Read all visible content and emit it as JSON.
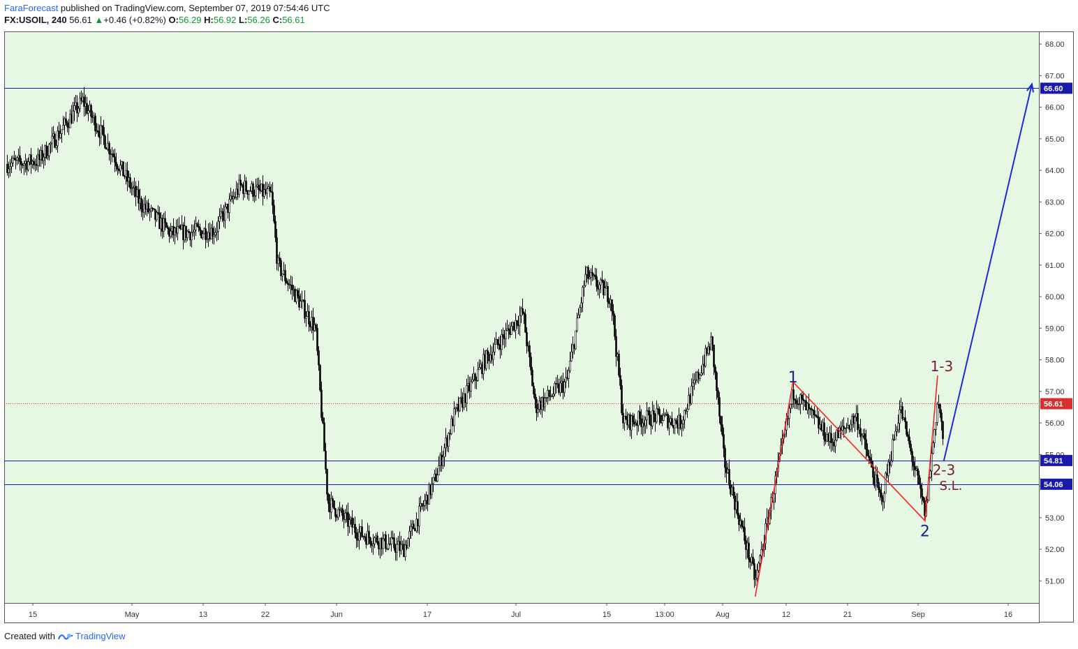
{
  "header": {
    "brand": "FaraForecast",
    "published": " published on TradingView.com, September 07, 2019 07:54:46 UTC",
    "symbol": "FX:USOIL, 240",
    "last": "56.61",
    "change": "+0.46 (+0.82%)",
    "o_label": "O:",
    "o": "56.29",
    "h_label": "H:",
    "h": "56.92",
    "l_label": "L:",
    "l": "56.26",
    "c_label": "C:",
    "c": "56.61"
  },
  "footer": {
    "created_with": "Created with",
    "tv_name": "TradingView"
  },
  "colors": {
    "background": "#e6f7e4",
    "candles": "#000000",
    "levels": "#1a1aa8",
    "projection": "#1a2adf",
    "wave": "#ff1e1e",
    "last_price": "#d63030",
    "label_wave": "#1e1e8c",
    "label_wave_alt": "#7a1a3a"
  },
  "chart_data": {
    "type": "candlestick",
    "symbol": "FX:USOIL",
    "interval": "240",
    "ylim": [
      50.3,
      68.4
    ],
    "y_ticks": [
      "51.00",
      "52.00",
      "53.00",
      "54.00",
      "55.00",
      "56.00",
      "57.00",
      "58.00",
      "59.00",
      "60.00",
      "61.00",
      "62.00",
      "63.00",
      "64.00",
      "65.00",
      "66.00",
      "67.00",
      "68.00"
    ],
    "x_ticks": [
      "15",
      "May",
      "13",
      "22",
      "Jun",
      "17",
      "Jul",
      "15",
      "13:00",
      "Aug",
      "12",
      "21",
      "Sep",
      "16"
    ],
    "levels": [
      {
        "value": 66.6,
        "label": "66.60"
      },
      {
        "value": 54.81,
        "label": "54.81"
      },
      {
        "value": 54.06,
        "label": "54.06"
      }
    ],
    "last_price": {
      "value": 56.61,
      "label": "56.61"
    },
    "series": [
      {
        "x": [
          "Apr 10",
          "Apr 15",
          "Apr 22",
          "Apr 26",
          "May 1",
          "May 6",
          "May 13",
          "May 17",
          "May 22",
          "May 23",
          "May 29",
          "May 31",
          "Jun 5",
          "Jun 12",
          "Jun 17",
          "Jun 20",
          "Jun 25",
          "Jul 1",
          "Jul 3",
          "Jul 8",
          "Jul 11",
          "Jul 15",
          "Jul 17",
          "Jul 22",
          "Jul 26",
          "Jul 31",
          "Aug 2",
          "Aug 7",
          "Aug 13",
          "Aug 19",
          "Aug 23",
          "Aug 27",
          "Aug 30",
          "Sep 3",
          "Sep 5",
          "Sep 6"
        ],
        "close": [
          64.2,
          64.3,
          66.2,
          64.8,
          63.0,
          62.0,
          62.1,
          63.5,
          63.2,
          61.0,
          59.0,
          53.5,
          52.5,
          52.0,
          54.2,
          56.2,
          58.0,
          59.5,
          56.5,
          57.3,
          60.7,
          60.0,
          56.0,
          56.2,
          56.0,
          58.6,
          54.8,
          51.0,
          57.0,
          55.4,
          56.2,
          53.5,
          56.5,
          53.1,
          56.8,
          55.2
        ]
      }
    ],
    "wave_labels": [
      {
        "text": "1",
        "x": "Aug 13",
        "y": 57.2
      },
      {
        "text": "2",
        "x": "Sep 3",
        "y": 52.9
      },
      {
        "text": "1-3",
        "x": "Sep 5",
        "y": 57.5
      },
      {
        "text": "2-3",
        "x": "Sep 6",
        "y": 54.8
      },
      {
        "text": "S.L.",
        "x": "Sep 6",
        "y": 54.06
      }
    ],
    "wave_path": [
      {
        "x": "Aug 7",
        "y": 50.5
      },
      {
        "x": "Aug 13",
        "y": 57.3
      },
      {
        "x": "Sep 3",
        "y": 52.9
      },
      {
        "x": "Sep 5",
        "y": 57.5
      }
    ],
    "projection": [
      {
        "x": "Sep 6",
        "y": 54.81
      },
      {
        "x": "Sep 20",
        "y": 66.6
      }
    ]
  }
}
